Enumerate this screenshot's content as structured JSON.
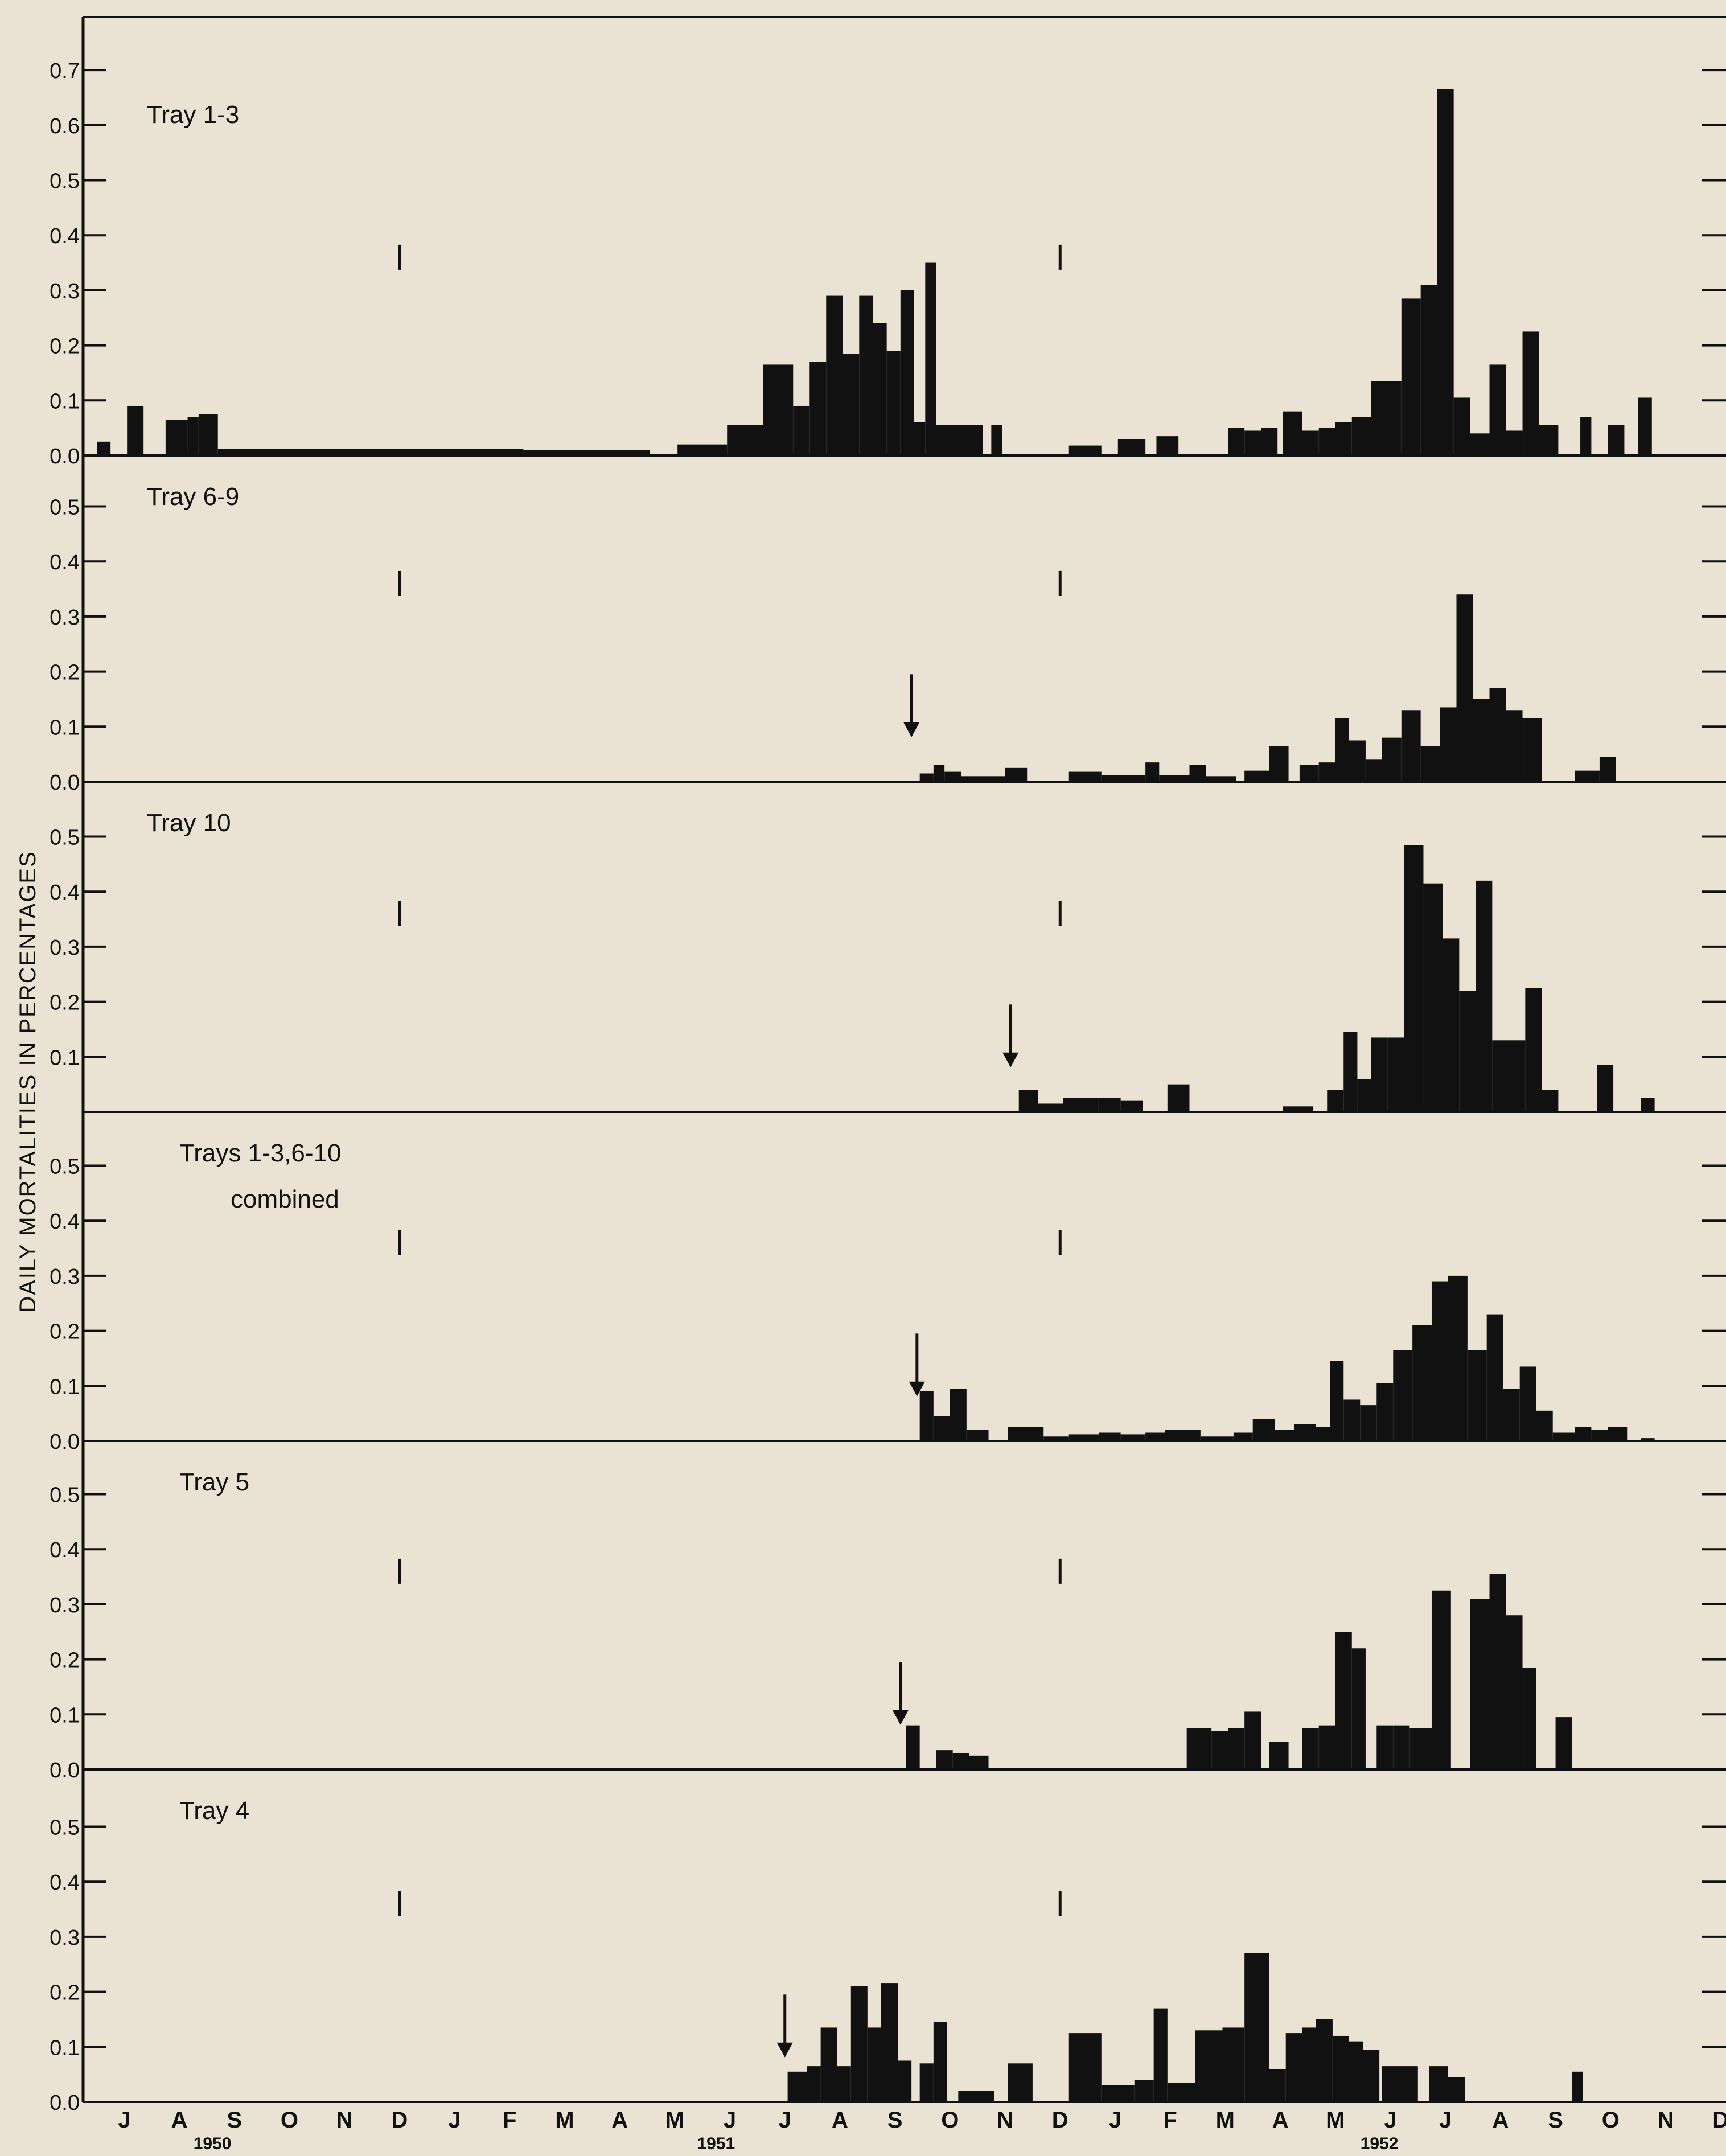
{
  "ylabel": "DAILY MORTALITIES IN PERCENTAGES",
  "months": [
    "J",
    "A",
    "S",
    "O",
    "N",
    "D",
    "J",
    "F",
    "M",
    "A",
    "M",
    "J",
    "J",
    "A",
    "S",
    "O",
    "N",
    "D",
    "J",
    "F",
    "M",
    "A",
    "M",
    "J",
    "J",
    "A",
    "S",
    "O",
    "N",
    "D"
  ],
  "years": [
    "1950",
    "1951",
    "1952"
  ],
  "colors": {
    "background": "#eae3d3",
    "ink": "#111111"
  },
  "chart_data": [
    {
      "type": "bar",
      "title": "Tray 1-3",
      "ylim": [
        0,
        0.7
      ],
      "yticks": [
        "0.0",
        "0.1",
        "0.2",
        "0.3",
        "0.4",
        "0.5",
        "0.6",
        "0.7"
      ],
      "markers": [
        5.5,
        17.5
      ],
      "arrow_at": null,
      "bars": [
        [
          0.0,
          0.25,
          0.025
        ],
        [
          0.55,
          0.85,
          0.09
        ],
        [
          1.25,
          1.65,
          0.065
        ],
        [
          1.65,
          1.85,
          0.07
        ],
        [
          1.85,
          2.2,
          0.075
        ],
        [
          2.2,
          5.55,
          0.012
        ],
        [
          5.55,
          7.75,
          0.012
        ],
        [
          7.75,
          10.05,
          0.01
        ],
        [
          10.55,
          11.45,
          0.02
        ],
        [
          11.45,
          12.1,
          0.055
        ],
        [
          12.1,
          12.65,
          0.165
        ],
        [
          12.65,
          12.95,
          0.09
        ],
        [
          12.95,
          13.25,
          0.17
        ],
        [
          13.25,
          13.55,
          0.29
        ],
        [
          13.55,
          13.85,
          0.185
        ],
        [
          13.85,
          14.1,
          0.29
        ],
        [
          14.1,
          14.35,
          0.24
        ],
        [
          14.35,
          14.6,
          0.19
        ],
        [
          14.6,
          14.85,
          0.3
        ],
        [
          14.85,
          15.05,
          0.06
        ],
        [
          15.05,
          15.25,
          0.35
        ],
        [
          15.25,
          16.1,
          0.055
        ],
        [
          16.25,
          16.45,
          0.055
        ],
        [
          17.65,
          18.25,
          0.018
        ],
        [
          18.55,
          19.05,
          0.03
        ],
        [
          19.25,
          19.65,
          0.035
        ],
        [
          20.55,
          20.85,
          0.05
        ],
        [
          20.85,
          21.15,
          0.045
        ],
        [
          21.15,
          21.45,
          0.05
        ],
        [
          21.55,
          21.9,
          0.08
        ],
        [
          21.9,
          22.2,
          0.045
        ],
        [
          22.2,
          22.5,
          0.05
        ],
        [
          22.5,
          22.8,
          0.06
        ],
        [
          22.8,
          23.15,
          0.07
        ],
        [
          23.15,
          23.7,
          0.135
        ],
        [
          23.7,
          24.05,
          0.285
        ],
        [
          24.05,
          24.35,
          0.31
        ],
        [
          24.35,
          24.65,
          0.665
        ],
        [
          24.65,
          24.95,
          0.105
        ],
        [
          24.95,
          25.3,
          0.04
        ],
        [
          25.3,
          25.6,
          0.165
        ],
        [
          25.6,
          25.9,
          0.045
        ],
        [
          25.9,
          26.2,
          0.225
        ],
        [
          26.2,
          26.55,
          0.055
        ],
        [
          26.95,
          27.15,
          0.07
        ],
        [
          27.45,
          27.75,
          0.055
        ],
        [
          28.0,
          28.25,
          0.105
        ]
      ]
    },
    {
      "type": "bar",
      "title": "Tray 6-9",
      "ylim": [
        0,
        0.5
      ],
      "yticks": [
        "0.0",
        "0.1",
        "0.2",
        "0.3",
        "0.4",
        "0.5"
      ],
      "markers": [
        5.5,
        17.5
      ],
      "arrow_at": 14.8,
      "bars": [
        [
          14.95,
          15.2,
          0.015
        ],
        [
          15.2,
          15.4,
          0.03
        ],
        [
          15.4,
          15.7,
          0.018
        ],
        [
          15.7,
          16.5,
          0.01
        ],
        [
          16.5,
          16.9,
          0.025
        ],
        [
          17.65,
          18.25,
          0.018
        ],
        [
          18.25,
          19.05,
          0.012
        ],
        [
          19.05,
          19.3,
          0.035
        ],
        [
          19.3,
          19.85,
          0.012
        ],
        [
          19.85,
          20.15,
          0.03
        ],
        [
          20.15,
          20.7,
          0.01
        ],
        [
          20.85,
          21.3,
          0.02
        ],
        [
          21.3,
          21.65,
          0.065
        ],
        [
          21.85,
          22.2,
          0.03
        ],
        [
          22.2,
          22.5,
          0.035
        ],
        [
          22.5,
          22.75,
          0.115
        ],
        [
          22.75,
          23.05,
          0.075
        ],
        [
          23.05,
          23.35,
          0.04
        ],
        [
          23.35,
          23.7,
          0.08
        ],
        [
          23.7,
          24.05,
          0.13
        ],
        [
          24.05,
          24.4,
          0.065
        ],
        [
          24.4,
          24.7,
          0.135
        ],
        [
          24.7,
          25.0,
          0.34
        ],
        [
          25.0,
          25.3,
          0.15
        ],
        [
          25.3,
          25.6,
          0.17
        ],
        [
          25.6,
          25.9,
          0.13
        ],
        [
          25.9,
          26.25,
          0.115
        ],
        [
          26.85,
          27.3,
          0.02
        ],
        [
          27.3,
          27.6,
          0.045
        ]
      ]
    },
    {
      "type": "bar",
      "title": "Tray 10",
      "ylim": [
        0,
        0.5
      ],
      "yticks": [
        "",
        "0.1",
        "0.2",
        "0.3",
        "0.4",
        "0.5"
      ],
      "markers": [
        5.5,
        17.5
      ],
      "arrow_at": 16.6,
      "bars": [
        [
          16.75,
          17.1,
          0.04
        ],
        [
          17.1,
          17.55,
          0.015
        ],
        [
          17.55,
          18.2,
          0.025
        ],
        [
          18.2,
          18.6,
          0.025
        ],
        [
          18.6,
          19.0,
          0.02
        ],
        [
          19.45,
          19.85,
          0.05
        ],
        [
          21.55,
          22.1,
          0.01
        ],
        [
          22.35,
          22.65,
          0.04
        ],
        [
          22.65,
          22.9,
          0.145
        ],
        [
          22.9,
          23.15,
          0.06
        ],
        [
          23.15,
          23.45,
          0.135
        ],
        [
          23.45,
          23.75,
          0.135
        ],
        [
          23.75,
          24.1,
          0.485
        ],
        [
          24.1,
          24.45,
          0.415
        ],
        [
          24.45,
          24.75,
          0.315
        ],
        [
          24.75,
          25.05,
          0.22
        ],
        [
          25.05,
          25.35,
          0.42
        ],
        [
          25.35,
          25.65,
          0.13
        ],
        [
          25.65,
          25.95,
          0.13
        ],
        [
          25.95,
          26.25,
          0.225
        ],
        [
          26.25,
          26.55,
          0.04
        ],
        [
          27.25,
          27.55,
          0.085
        ],
        [
          28.05,
          28.3,
          0.025
        ]
      ]
    },
    {
      "type": "bar",
      "title": "Trays 1-3,6-10",
      "subtitle": "combined",
      "ylim": [
        0,
        0.6
      ],
      "yticks": [
        "0.0",
        "0.1",
        "0.2",
        "0.3",
        "0.4",
        "0.5"
      ],
      "markers": [
        5.5,
        17.5
      ],
      "arrow_at": 14.9,
      "bars": [
        [
          14.95,
          15.2,
          0.09
        ],
        [
          15.2,
          15.5,
          0.045
        ],
        [
          15.5,
          15.8,
          0.095
        ],
        [
          15.8,
          16.2,
          0.02
        ],
        [
          16.55,
          17.2,
          0.025
        ],
        [
          17.2,
          17.65,
          0.008
        ],
        [
          17.65,
          18.2,
          0.012
        ],
        [
          18.2,
          18.6,
          0.015
        ],
        [
          18.6,
          19.05,
          0.012
        ],
        [
          19.05,
          19.4,
          0.015
        ],
        [
          19.4,
          20.05,
          0.02
        ],
        [
          20.05,
          20.65,
          0.008
        ],
        [
          20.65,
          21.0,
          0.015
        ],
        [
          21.0,
          21.4,
          0.04
        ],
        [
          21.4,
          21.75,
          0.02
        ],
        [
          21.75,
          22.15,
          0.03
        ],
        [
          22.15,
          22.4,
          0.025
        ],
        [
          22.4,
          22.65,
          0.145
        ],
        [
          22.65,
          22.95,
          0.075
        ],
        [
          22.95,
          23.25,
          0.065
        ],
        [
          23.25,
          23.55,
          0.105
        ],
        [
          23.55,
          23.9,
          0.165
        ],
        [
          23.9,
          24.25,
          0.21
        ],
        [
          24.25,
          24.55,
          0.29
        ],
        [
          24.55,
          24.9,
          0.3
        ],
        [
          24.9,
          25.25,
          0.165
        ],
        [
          25.25,
          25.55,
          0.23
        ],
        [
          25.55,
          25.85,
          0.095
        ],
        [
          25.85,
          26.15,
          0.135
        ],
        [
          26.15,
          26.45,
          0.055
        ],
        [
          26.45,
          26.85,
          0.015
        ],
        [
          26.85,
          27.15,
          0.025
        ],
        [
          27.15,
          27.45,
          0.02
        ],
        [
          27.45,
          27.8,
          0.025
        ],
        [
          28.05,
          28.3,
          0.005
        ]
      ]
    },
    {
      "type": "bar",
      "title": "Tray 5",
      "ylim": [
        0,
        0.6
      ],
      "yticks": [
        "0.0",
        "0.1",
        "0.2",
        "0.3",
        "0.4",
        "0.5"
      ],
      "markers": [
        5.5,
        17.5
      ],
      "arrow_at": 14.6,
      "bars": [
        [
          14.7,
          14.95,
          0.08
        ],
        [
          15.25,
          15.55,
          0.035
        ],
        [
          15.55,
          15.85,
          0.03
        ],
        [
          15.85,
          16.2,
          0.025
        ],
        [
          19.8,
          20.25,
          0.075
        ],
        [
          20.25,
          20.55,
          0.07
        ],
        [
          20.55,
          20.85,
          0.075
        ],
        [
          20.85,
          21.15,
          0.105
        ],
        [
          21.3,
          21.65,
          0.05
        ],
        [
          21.9,
          22.2,
          0.075
        ],
        [
          22.2,
          22.5,
          0.08
        ],
        [
          22.5,
          22.8,
          0.25
        ],
        [
          22.8,
          23.05,
          0.22
        ],
        [
          23.25,
          23.55,
          0.08
        ],
        [
          23.55,
          23.85,
          0.08
        ],
        [
          23.85,
          24.25,
          0.075
        ],
        [
          24.25,
          24.6,
          0.325
        ],
        [
          24.95,
          25.3,
          0.31
        ],
        [
          25.3,
          25.6,
          0.355
        ],
        [
          25.6,
          25.9,
          0.28
        ],
        [
          25.9,
          26.15,
          0.185
        ],
        [
          26.5,
          26.8,
          0.095
        ]
      ]
    },
    {
      "type": "bar",
      "title": "Tray 4",
      "ylim": [
        0,
        0.6
      ],
      "yticks": [
        "0.0",
        "0.1",
        "0.2",
        "0.3",
        "0.4",
        "0.5"
      ],
      "markers": [
        5.5,
        17.5
      ],
      "arrow_at": 12.5,
      "bars": [
        [
          12.55,
          12.9,
          0.055
        ],
        [
          12.9,
          13.15,
          0.065
        ],
        [
          13.15,
          13.45,
          0.135
        ],
        [
          13.45,
          13.7,
          0.065
        ],
        [
          13.7,
          14.0,
          0.21
        ],
        [
          14.0,
          14.25,
          0.135
        ],
        [
          14.25,
          14.55,
          0.215
        ],
        [
          14.55,
          14.8,
          0.075
        ],
        [
          14.95,
          15.2,
          0.07
        ],
        [
          15.2,
          15.45,
          0.145
        ],
        [
          15.65,
          16.3,
          0.02
        ],
        [
          16.55,
          17.0,
          0.07
        ],
        [
          17.65,
          18.25,
          0.125
        ],
        [
          18.25,
          18.85,
          0.03
        ],
        [
          18.85,
          19.2,
          0.04
        ],
        [
          19.2,
          19.45,
          0.17
        ],
        [
          19.45,
          19.95,
          0.035
        ],
        [
          19.95,
          20.45,
          0.13
        ],
        [
          20.45,
          20.85,
          0.135
        ],
        [
          20.85,
          21.3,
          0.27
        ],
        [
          21.3,
          21.6,
          0.06
        ],
        [
          21.6,
          21.9,
          0.125
        ],
        [
          21.9,
          22.15,
          0.135
        ],
        [
          22.15,
          22.45,
          0.15
        ],
        [
          22.45,
          22.75,
          0.12
        ],
        [
          22.75,
          23.0,
          0.11
        ],
        [
          23.0,
          23.3,
          0.095
        ],
        [
          23.35,
          24.0,
          0.065
        ],
        [
          24.2,
          24.55,
          0.065
        ],
        [
          24.55,
          24.85,
          0.045
        ],
        [
          26.8,
          27.0,
          0.055
        ]
      ]
    }
  ]
}
